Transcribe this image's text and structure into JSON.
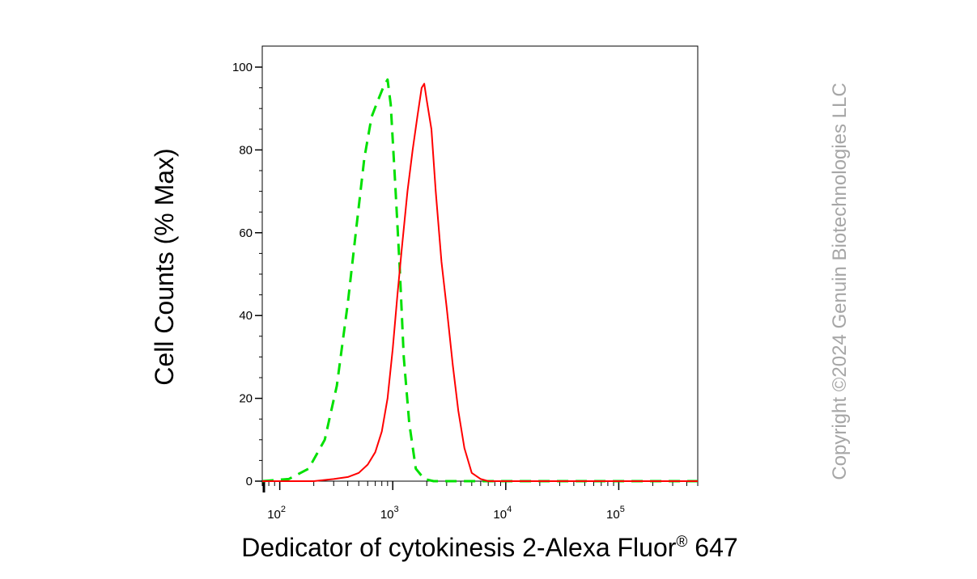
{
  "chart_data": {
    "type": "line",
    "title": "",
    "xlabel": "Dedicator of cytokinesis 2-Alexa Fluor",
    "xlabel_sup": "®",
    "xlabel_suffix": " 647",
    "ylabel": "Cell Counts (% Max)",
    "xscale": "log",
    "xlim": [
      70,
      500000
    ],
    "ylim": [
      0,
      100
    ],
    "x_tick_labels": [
      {
        "value": 100,
        "base": "10",
        "exp": "2"
      },
      {
        "value": 1000,
        "base": "10",
        "exp": "3"
      },
      {
        "value": 10000,
        "base": "10",
        "exp": "4"
      },
      {
        "value": 100000,
        "base": "10",
        "exp": "5"
      }
    ],
    "y_ticks": [
      0,
      20,
      40,
      60,
      80,
      100
    ],
    "y_tick_labels": [
      "0",
      "20",
      "40",
      "60",
      "80",
      "100"
    ],
    "grid": false,
    "series": [
      {
        "color": "#00e000",
        "dash": "dashed",
        "x": [
          70,
          120,
          180,
          250,
          320,
          400,
          480,
          560,
          650,
          740,
          820,
          900,
          960,
          1050,
          1150,
          1250,
          1400,
          1600,
          1900,
          2300,
          3000,
          5000,
          500000
        ],
        "y": [
          0,
          0.5,
          3,
          10,
          23,
          43,
          62,
          78,
          88,
          92,
          95,
          97,
          91,
          72,
          52,
          30,
          14,
          3,
          0.5,
          0,
          0,
          0,
          0
        ]
      },
      {
        "color": "#ff0000",
        "dash": "solid",
        "x": [
          70,
          200,
          300,
          400,
          500,
          600,
          700,
          800,
          900,
          1000,
          1100,
          1200,
          1350,
          1500,
          1650,
          1800,
          1900,
          2000,
          2200,
          2400,
          2700,
          3000,
          3400,
          3800,
          4300,
          5000,
          6000,
          7000,
          500000
        ],
        "y": [
          0,
          0,
          0.5,
          1,
          2,
          4,
          7,
          12,
          20,
          32,
          45,
          56,
          70,
          80,
          88,
          95,
          96,
          92,
          85,
          70,
          53,
          42,
          28,
          17,
          8,
          2,
          0.5,
          0,
          0
        ]
      }
    ]
  },
  "watermark": "Copyright ©2024 Genuin Biotechnologies LLC"
}
